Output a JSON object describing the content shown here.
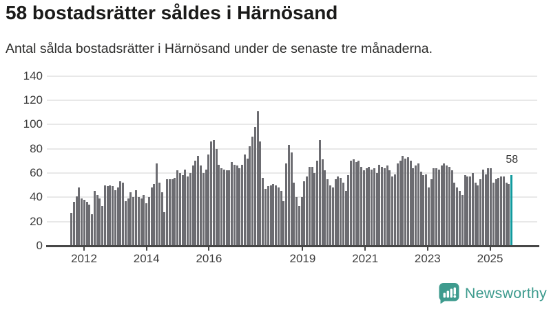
{
  "title": "58 bostadsrätter såldes i Härnösand",
  "subtitle": "Antal sålda bostadsrätter i Härnösand under de senaste tre månaderna.",
  "branding": {
    "logo_text": "Newsworthy",
    "logo_color": "#3e9b8e",
    "logo_icon": "newsworthy-speech-bubble-bar-chart-icon"
  },
  "chart_data": {
    "type": "bar",
    "title": "58 bostadsrätter såldes i Härnösand",
    "subtitle": "Antal sålda bostadsrätter i Härnösand under de senaste tre månaderna.",
    "xlabel": "",
    "ylabel": "",
    "frequency": "monthly",
    "start_month": "2011-07",
    "end_month": "2025-09",
    "ylim": [
      0,
      140
    ],
    "yticks": [
      0,
      20,
      40,
      60,
      80,
      100,
      120,
      140
    ],
    "xticks": [
      {
        "label": "2012",
        "year": 2012
      },
      {
        "label": "2014",
        "year": 2014
      },
      {
        "label": "2016",
        "year": 2016
      },
      {
        "label": "2019",
        "year": 2019
      },
      {
        "label": "2021",
        "year": 2021
      },
      {
        "label": "2023",
        "year": 2023
      },
      {
        "label": "2025",
        "year": 2025
      }
    ],
    "grid": true,
    "legend": "none",
    "bar_color": "#6c6c71",
    "grid_color": "#e8e8e8",
    "axis_color": "#474747",
    "values": [
      27,
      36,
      41,
      48,
      39,
      38,
      36,
      34,
      26,
      45,
      42,
      39,
      33,
      50,
      49,
      50,
      49,
      46,
      48,
      53,
      52,
      37,
      39,
      44,
      40,
      46,
      40,
      39,
      42,
      35,
      40,
      48,
      51,
      68,
      52,
      44,
      28,
      55,
      55,
      55,
      56,
      62,
      60,
      58,
      63,
      57,
      60,
      66,
      70,
      74,
      66,
      60,
      63,
      75,
      86,
      87,
      80,
      67,
      64,
      63,
      62,
      62,
      69,
      67,
      66,
      64,
      67,
      75,
      72,
      82,
      90,
      98,
      111,
      86,
      56,
      47,
      49,
      50,
      51,
      50,
      48,
      45,
      37,
      68,
      83,
      77,
      52,
      40,
      33,
      40,
      53,
      57,
      65,
      65,
      60,
      70,
      87,
      71,
      62,
      55,
      50,
      48,
      55,
      57,
      56,
      52,
      45,
      58,
      70,
      71,
      69,
      70,
      65,
      62,
      64,
      65,
      63,
      64,
      60,
      67,
      65,
      64,
      66,
      62,
      57,
      59,
      68,
      70,
      74,
      72,
      73,
      70,
      64,
      66,
      68,
      61,
      58,
      59,
      48,
      55,
      64,
      64,
      63,
      66,
      68,
      66,
      65,
      62,
      52,
      48,
      45,
      42,
      58,
      57,
      57,
      60,
      52,
      50,
      55,
      63,
      59,
      64,
      64,
      52,
      55,
      56,
      57,
      57,
      52,
      51,
      58
    ],
    "highlight": {
      "index": 170,
      "value": 58,
      "label": "58",
      "color": "#119a9e"
    }
  }
}
